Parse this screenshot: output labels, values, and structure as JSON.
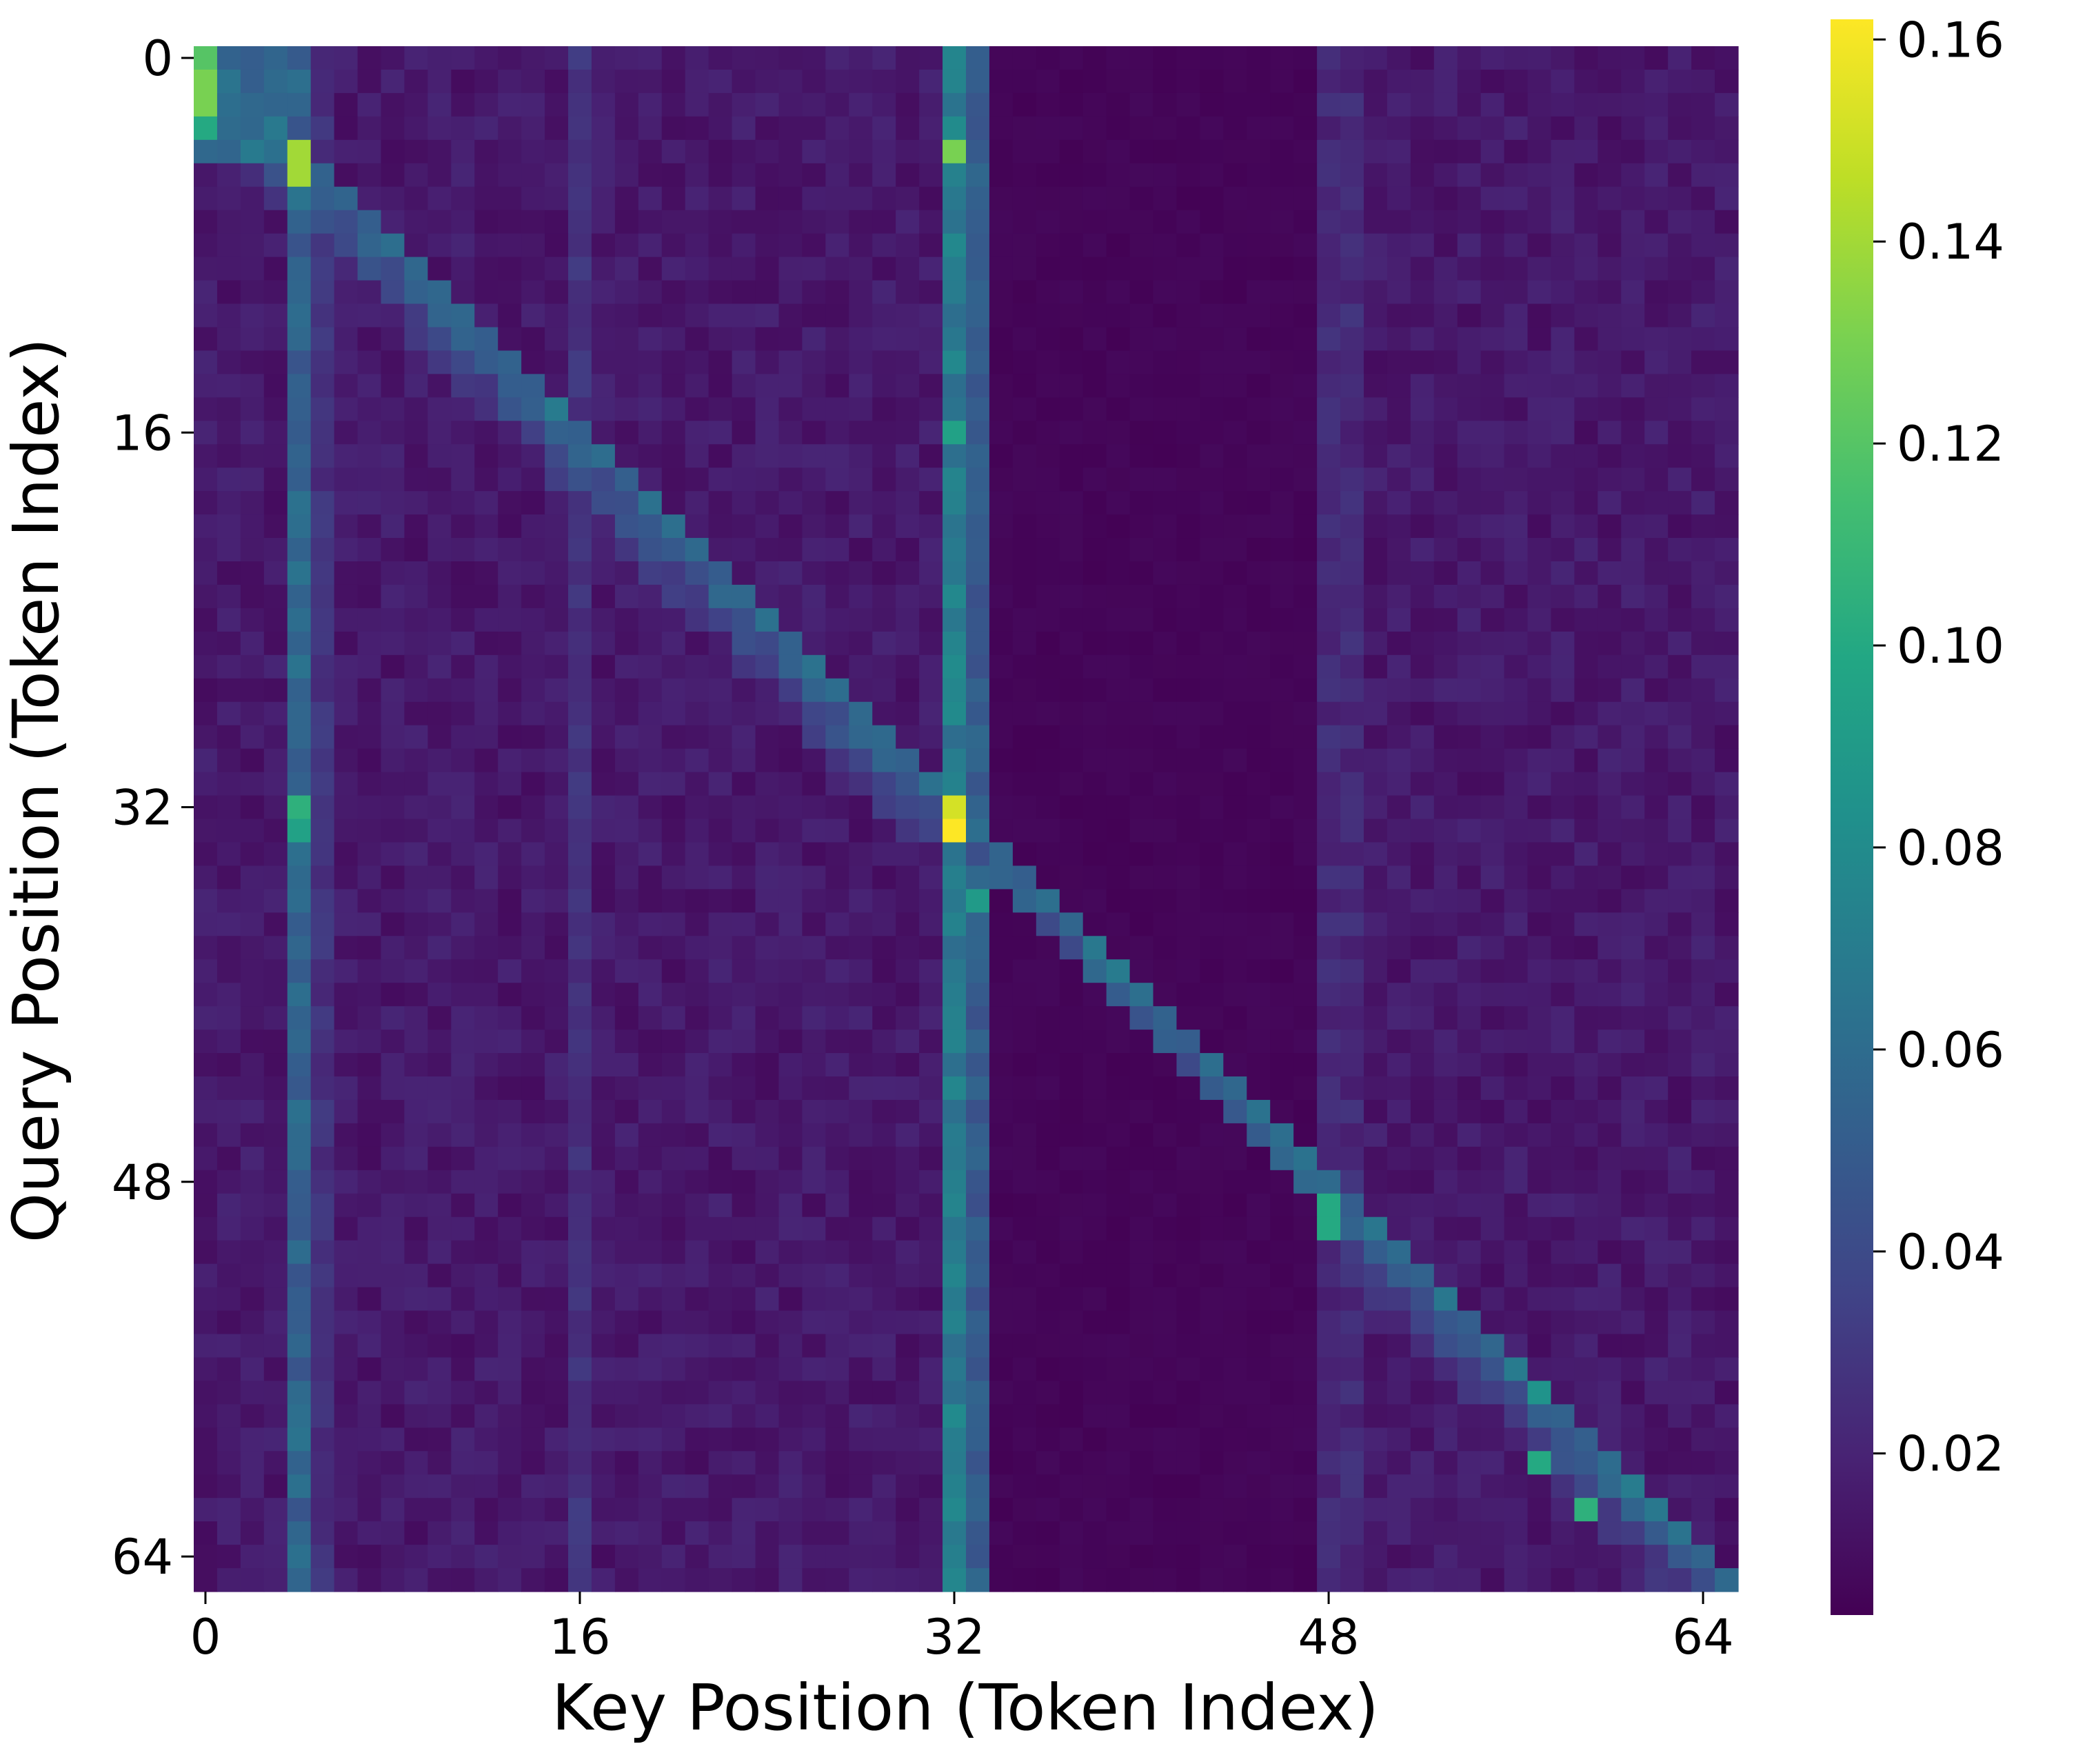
{
  "chart_data": {
    "type": "heatmap",
    "title": "",
    "xlabel": "Key Position (Token Index)",
    "ylabel": "Query Position (Token Index)",
    "n_rows": 66,
    "n_cols": 66,
    "x_ticks": [
      0,
      16,
      32,
      48,
      64
    ],
    "y_ticks": [
      0,
      16,
      32,
      48,
      64
    ],
    "colorbar": {
      "colormap": "viridis",
      "vmin": 0.004,
      "vmax": 0.162,
      "ticks": [
        0.02,
        0.04,
        0.06,
        0.08,
        0.1,
        0.12,
        0.14,
        0.16
      ],
      "tick_labels": [
        "0.02",
        "0.04",
        "0.06",
        "0.08",
        "0.10",
        "0.12",
        "0.14",
        "0.16"
      ]
    },
    "grid": false,
    "description_of_values": {
      "background_low_region_cols_34_to_47": 0.006,
      "general_background": 0.015,
      "sink_column_4": 0.055,
      "sink_column_32": 0.07,
      "sink_column_33": 0.05,
      "cols_0_to_3_rows_0_to_4": 0.06,
      "diagonal_band": 0.06
    },
    "highlighted_cells": [
      {
        "row": 0,
        "col": 0,
        "value": 0.12
      },
      {
        "row": 1,
        "col": 0,
        "value": 0.13
      },
      {
        "row": 2,
        "col": 0,
        "value": 0.13
      },
      {
        "row": 3,
        "col": 0,
        "value": 0.1
      },
      {
        "row": 4,
        "col": 4,
        "value": 0.14
      },
      {
        "row": 5,
        "col": 4,
        "value": 0.14
      },
      {
        "row": 4,
        "col": 32,
        "value": 0.13
      },
      {
        "row": 32,
        "col": 32,
        "value": 0.152
      },
      {
        "row": 33,
        "col": 32,
        "value": 0.162
      },
      {
        "row": 32,
        "col": 4,
        "value": 0.105
      },
      {
        "row": 33,
        "col": 4,
        "value": 0.095
      },
      {
        "row": 16,
        "col": 32,
        "value": 0.095
      },
      {
        "row": 36,
        "col": 33,
        "value": 0.09
      },
      {
        "row": 49,
        "col": 48,
        "value": 0.1
      },
      {
        "row": 50,
        "col": 48,
        "value": 0.1
      },
      {
        "row": 60,
        "col": 57,
        "value": 0.1
      },
      {
        "row": 62,
        "col": 59,
        "value": 0.105
      },
      {
        "row": 57,
        "col": 57,
        "value": 0.085
      }
    ]
  }
}
